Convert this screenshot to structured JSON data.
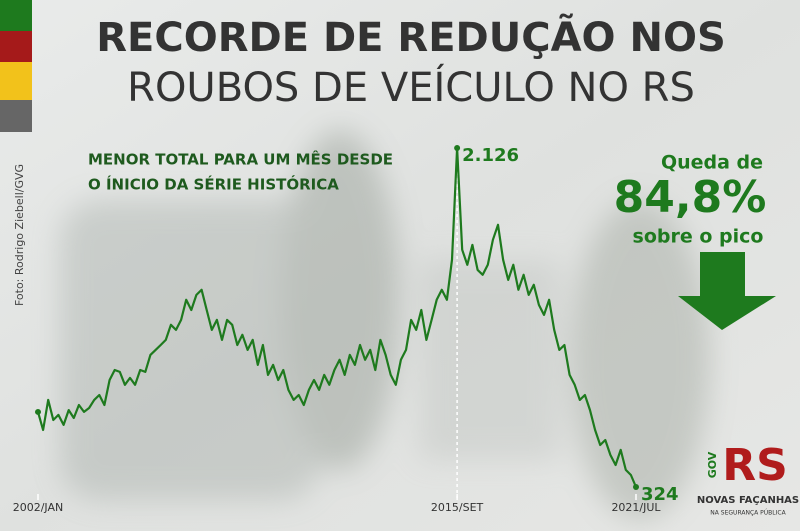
{
  "chart_data": {
    "type": "line",
    "title": "RECORDE DE REDUÇÃO NOS",
    "subtitle": "ROUBOS DE VEÍCULO NO RS",
    "annotation": [
      "MENOR TOTAL PARA UM MÊS DESDE",
      "O ÍNICIO DA SÉRIE HISTÓRICA"
    ],
    "callout": {
      "lead": "Queda de",
      "value": "84,8%",
      "tail": "sobre o pico"
    },
    "credit": "Foto: Rodrigo Ziebell/GVG",
    "logo": {
      "gov": "GOV",
      "mark": "RS",
      "line1": "NOVAS FAÇANHAS",
      "line2": "NA SEGURANÇA PÚBLICA"
    },
    "color": "#1e7a1e",
    "categories": [
      "2002/JAN",
      null,
      null,
      null,
      null,
      null,
      null,
      null,
      null,
      null,
      null,
      null,
      null,
      null,
      null,
      null,
      null,
      null,
      null,
      null,
      null,
      null,
      null,
      null,
      null,
      null,
      null,
      null,
      null,
      null,
      null,
      null,
      null,
      null,
      null,
      null,
      null,
      null,
      null,
      null,
      null,
      null,
      null,
      null,
      null,
      null,
      null,
      null,
      null,
      null,
      null,
      null,
      null,
      null,
      null,
      null,
      null,
      null,
      null,
      null,
      null,
      null,
      null,
      null,
      null,
      null,
      null,
      null,
      null,
      null,
      null,
      null,
      null,
      null,
      null,
      null,
      null,
      null,
      null,
      null,
      null,
      null,
      "2015/SET",
      null,
      null,
      null,
      null,
      null,
      null,
      null,
      null,
      null,
      null,
      null,
      null,
      null,
      null,
      null,
      null,
      null,
      null,
      null,
      null,
      null,
      null,
      null,
      null,
      null,
      null,
      null,
      null,
      null,
      null,
      null,
      null,
      null,
      null,
      "2021/JUL"
    ],
    "values": [
      723,
      627,
      787,
      680,
      707,
      654,
      733,
      691,
      760,
      723,
      744,
      787,
      813,
      760,
      893,
      946,
      936,
      867,
      904,
      867,
      946,
      936,
      1026,
      1053,
      1079,
      1106,
      1186,
      1159,
      1212,
      1319,
      1265,
      1345,
      1372,
      1265,
      1159,
      1212,
      1106,
      1212,
      1186,
      1079,
      1133,
      1053,
      1106,
      973,
      1079,
      920,
      973,
      893,
      946,
      840,
      787,
      813,
      760,
      840,
      893,
      840,
      920,
      867,
      946,
      1000,
      920,
      1026,
      973,
      1079,
      1000,
      1053,
      946,
      1106,
      1026,
      920,
      867,
      1000,
      1053,
      1212,
      1159,
      1265,
      1106,
      1212,
      1319,
      1372,
      1319,
      1532,
      2126,
      1585,
      1505,
      1611,
      1478,
      1452,
      1505,
      1638,
      1718,
      1532,
      1425,
      1505,
      1372,
      1452,
      1345,
      1399,
      1292,
      1239,
      1319,
      1159,
      1053,
      1079,
      920,
      867,
      787,
      813,
      733,
      627,
      547,
      574,
      494,
      441,
      521,
      415,
      388,
      324
    ],
    "value_labels": [
      null,
      null,
      null,
      null,
      null,
      null,
      null,
      null,
      null,
      null,
      null,
      null,
      null,
      null,
      null,
      null,
      null,
      null,
      null,
      null,
      null,
      null,
      null,
      null,
      null,
      null,
      null,
      null,
      null,
      null,
      null,
      null,
      null,
      null,
      null,
      null,
      null,
      null,
      null,
      null,
      null,
      null,
      null,
      null,
      null,
      null,
      null,
      null,
      null,
      null,
      null,
      null,
      null,
      null,
      null,
      null,
      null,
      null,
      null,
      null,
      null,
      null,
      null,
      null,
      null,
      null,
      null,
      null,
      null,
      null,
      null,
      null,
      null,
      null,
      null,
      null,
      null,
      null,
      null,
      null,
      null,
      null,
      "2.126",
      null,
      null,
      null,
      null,
      null,
      null,
      null,
      null,
      null,
      null,
      null,
      null,
      null,
      null,
      null,
      null,
      null,
      null,
      null,
      null,
      null,
      null,
      null,
      null,
      null,
      null,
      null,
      null,
      null,
      null,
      null,
      null,
      null,
      null,
      "324"
    ]
  }
}
